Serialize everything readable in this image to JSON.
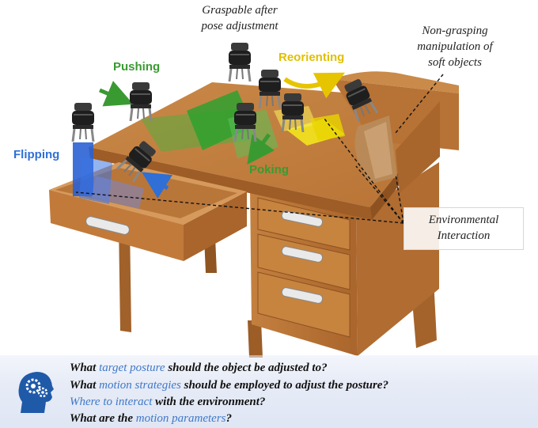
{
  "labels": {
    "flipping": "Flipping",
    "pushing": "Pushing",
    "poking": "Poking",
    "reorienting": "Reorienting"
  },
  "notes": {
    "graspable_line1": "Graspable after",
    "graspable_line2": "pose adjustment",
    "nongrasp_line1": "Non-grasping",
    "nongrasp_line2": "manipulation of",
    "nongrasp_line3": "soft objects",
    "env_line1": "Environmental",
    "env_line2": "Interaction"
  },
  "questions": [
    {
      "pre": "What ",
      "hl": "target posture",
      "post": " should the object be adjusted to?"
    },
    {
      "pre": "What ",
      "hl": "motion strategies",
      "post": " should be employed to adjust the posture?"
    },
    {
      "pre": "",
      "hl": "Where to interact",
      "post": " with the environment?"
    },
    {
      "pre": "What are the ",
      "hl": "motion parameters",
      "post": "?"
    }
  ],
  "icons": {
    "head": "head-gears-icon",
    "gripper": "robot-gripper-icon"
  },
  "colors": {
    "flipping": "#2f6fd6",
    "pushing": "#3a9a32",
    "reorienting": "#e0c000",
    "highlight": "#3f78c8",
    "wood": "#c27a3a"
  }
}
